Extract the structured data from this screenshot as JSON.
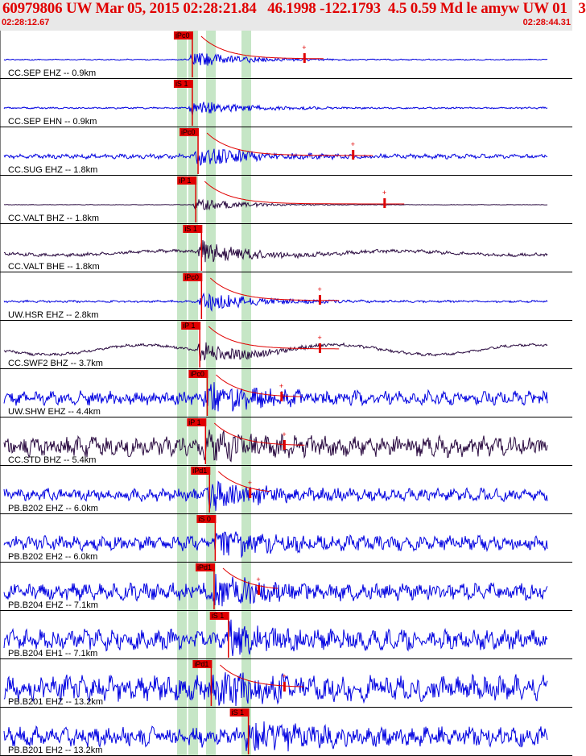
{
  "header": {
    "title": "60979806 UW Mar 05, 2015 02:28:21.84   46.1998 -122.1793  4.5 0.59 Md le amyw UW 01   3",
    "start_time": "02:28:12.67",
    "end_time": "02:28:44.31"
  },
  "colors": {
    "header_bg": "#e8e8e8",
    "header_text": "#e00000",
    "trace_blue": "#0000e0",
    "trace_dark": "#2a0a40",
    "pick_red": "#e00000",
    "pick_window_green": "#b8e0b8"
  },
  "traces": [
    {
      "label": "CC.SEP EHZ -- 0.9km",
      "pick": "iPc0",
      "color": "blue",
      "pick_t": 0.322,
      "amp": 0.45,
      "noise": 0.02,
      "coda": true,
      "marker_t": 0.525
    },
    {
      "label": "CC.SEP EHN -- 0.9km",
      "pick": "iS 1",
      "color": "blue",
      "pick_t": 0.322,
      "amp": 0.42,
      "noise": 0.03,
      "coda": false
    },
    {
      "label": "CC.SUG EHZ -- 1.8km",
      "pick": "iPc0",
      "color": "blue",
      "pick_t": 0.332,
      "amp": 0.55,
      "noise": 0.08,
      "coda": true,
      "marker_t": 0.61
    },
    {
      "label": "CC.VALT BHZ -- 1.8km",
      "pick": "iP 1",
      "color": "dark",
      "pick_t": 0.328,
      "amp": 0.35,
      "noise": 0.01,
      "coda": true,
      "marker_t": 0.665
    },
    {
      "label": "CC.VALT BHE -- 1.8km",
      "pick": "iS 1",
      "color": "dark",
      "pick_t": 0.338,
      "amp": 0.55,
      "noise": 0.06,
      "coda": false
    },
    {
      "label": "UW.HSR EHZ -- 2.8km",
      "pick": "iPc0",
      "color": "blue",
      "pick_t": 0.338,
      "amp": 0.55,
      "noise": 0.04,
      "coda": true,
      "marker_t": 0.552
    },
    {
      "label": "CC.SWF2 BHZ -- 3.7km",
      "pick": "iP 1",
      "color": "dark",
      "pick_t": 0.335,
      "amp": 0.55,
      "noise": 0.05,
      "coda": true,
      "marker_t": 0.552,
      "swell": true
    },
    {
      "label": "UW.SHW EHZ -- 4.4km",
      "pick": "iPc0",
      "color": "blue",
      "pick_t": 0.348,
      "amp": 0.6,
      "noise": 0.25,
      "coda": true,
      "marker_t": 0.485
    },
    {
      "label": "CC.STD BHZ -- 5.4km",
      "pick": "iP 1",
      "color": "dark",
      "pick_t": 0.345,
      "amp": 0.4,
      "noise": 0.35,
      "coda": true,
      "marker_t": 0.49
    },
    {
      "label": "PB.B202 EHZ -- 6.0km",
      "pick": "iPd1",
      "color": "blue",
      "pick_t": 0.352,
      "amp": 0.6,
      "noise": 0.22,
      "coda": true,
      "marker_t": 0.43
    },
    {
      "label": "PB.B202 EH2 -- 6.0km",
      "pick": "iS 0",
      "color": "blue",
      "pick_t": 0.362,
      "amp": 0.6,
      "noise": 0.25,
      "coda": false
    },
    {
      "label": "PB.B204 EHZ -- 7.1km",
      "pick": "iPd1",
      "color": "blue",
      "pick_t": 0.36,
      "amp": 0.55,
      "noise": 0.3,
      "coda": true,
      "marker_t": 0.445
    },
    {
      "label": "PB.B204 EH1 -- 7.1km",
      "pick": "iS 1",
      "color": "blue",
      "pick_t": 0.385,
      "amp": 0.6,
      "noise": 0.35,
      "coda": false
    },
    {
      "label": "PB.B201 EHZ -- 13.2km",
      "pick": "iPd1",
      "color": "blue",
      "pick_t": 0.355,
      "amp": 0.55,
      "noise": 0.45,
      "coda": true,
      "marker_t": 0.49
    },
    {
      "label": "PB.B201 EH2 -- 13.2km",
      "pick": "iS 1",
      "color": "blue",
      "pick_t": 0.42,
      "amp": 0.6,
      "noise": 0.35,
      "coda": false
    }
  ]
}
